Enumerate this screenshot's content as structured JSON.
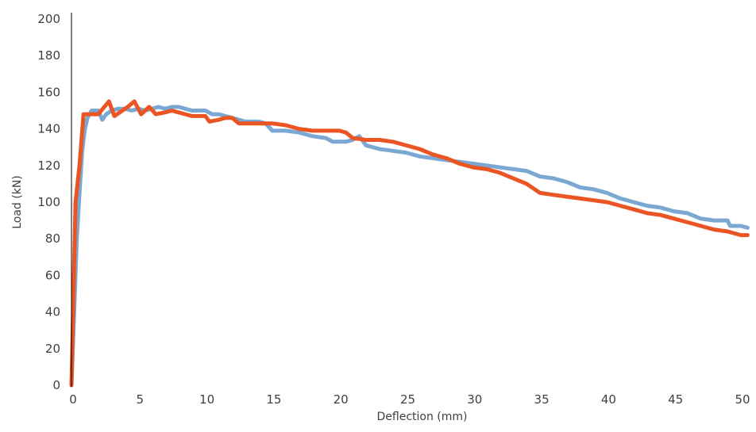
{
  "chart_data": {
    "type": "line",
    "xlabel": "Deflection (mm)",
    "ylabel": "Load (kN)",
    "xlim": [
      0,
      50
    ],
    "ylim": [
      0,
      200
    ],
    "xticks": [
      0,
      5,
      10,
      15,
      20,
      25,
      30,
      35,
      40,
      45,
      50
    ],
    "yticks": [
      0,
      20,
      40,
      60,
      80,
      100,
      120,
      140,
      160,
      180,
      200
    ],
    "grid": false,
    "legend": "none",
    "series": [
      {
        "color": "#7ba7d3",
        "points": [
          [
            0,
            0
          ],
          [
            0.2,
            40
          ],
          [
            0.4,
            80
          ],
          [
            0.6,
            105
          ],
          [
            0.8,
            128
          ],
          [
            1.0,
            140
          ],
          [
            1.2,
            146
          ],
          [
            1.5,
            150
          ],
          [
            2.0,
            150
          ],
          [
            2.3,
            145
          ],
          [
            2.6,
            148
          ],
          [
            3.0,
            150
          ],
          [
            3.5,
            151
          ],
          [
            4.0,
            151
          ],
          [
            4.5,
            150
          ],
          [
            5.0,
            151
          ],
          [
            5.5,
            150
          ],
          [
            6.0,
            151
          ],
          [
            6.5,
            152
          ],
          [
            7.0,
            151
          ],
          [
            7.5,
            152
          ],
          [
            8.0,
            152
          ],
          [
            8.5,
            151
          ],
          [
            9.0,
            150
          ],
          [
            9.5,
            150
          ],
          [
            10.0,
            150
          ],
          [
            10.5,
            148
          ],
          [
            11.0,
            148
          ],
          [
            11.5,
            147
          ],
          [
            12.0,
            146
          ],
          [
            12.5,
            145
          ],
          [
            13.0,
            144
          ],
          [
            13.5,
            144
          ],
          [
            14.0,
            144
          ],
          [
            14.5,
            143
          ],
          [
            15.0,
            139
          ],
          [
            16.0,
            139
          ],
          [
            17.0,
            138
          ],
          [
            17.5,
            137
          ],
          [
            18.0,
            136
          ],
          [
            19.0,
            135
          ],
          [
            19.5,
            133
          ],
          [
            20.0,
            133
          ],
          [
            20.5,
            133
          ],
          [
            21.0,
            134
          ],
          [
            21.5,
            136
          ],
          [
            22.0,
            131
          ],
          [
            23.0,
            129
          ],
          [
            24.0,
            128
          ],
          [
            25.0,
            127
          ],
          [
            26.0,
            125
          ],
          [
            27.0,
            124
          ],
          [
            28.0,
            123
          ],
          [
            29.0,
            122
          ],
          [
            30.0,
            121
          ],
          [
            31.0,
            120
          ],
          [
            32.0,
            119
          ],
          [
            33.0,
            118
          ],
          [
            34.0,
            117
          ],
          [
            35.0,
            114
          ],
          [
            36.0,
            113
          ],
          [
            37.0,
            111
          ],
          [
            38.0,
            108
          ],
          [
            39.0,
            107
          ],
          [
            40.0,
            105
          ],
          [
            41.0,
            102
          ],
          [
            42.0,
            100
          ],
          [
            43.0,
            98
          ],
          [
            44.0,
            97
          ],
          [
            45.0,
            95
          ],
          [
            46.0,
            94
          ],
          [
            47.0,
            91
          ],
          [
            48.0,
            90
          ],
          [
            49.0,
            90
          ],
          [
            49.2,
            87
          ],
          [
            50.0,
            87
          ],
          [
            50.5,
            86
          ]
        ]
      },
      {
        "color": "#ea5523",
        "points": [
          [
            0,
            0
          ],
          [
            0.3,
            100
          ],
          [
            0.6,
            120
          ],
          [
            0.9,
            148
          ],
          [
            1.5,
            148
          ],
          [
            2.0,
            148
          ],
          [
            2.8,
            155
          ],
          [
            3.2,
            147
          ],
          [
            3.8,
            150
          ],
          [
            4.2,
            152
          ],
          [
            4.7,
            155
          ],
          [
            5.2,
            148
          ],
          [
            5.8,
            152
          ],
          [
            6.3,
            148
          ],
          [
            7.0,
            149
          ],
          [
            7.5,
            150
          ],
          [
            8.0,
            149
          ],
          [
            8.5,
            148
          ],
          [
            9.0,
            147
          ],
          [
            9.5,
            147
          ],
          [
            10.0,
            147
          ],
          [
            10.3,
            144
          ],
          [
            11.0,
            145
          ],
          [
            11.5,
            146
          ],
          [
            12.0,
            146
          ],
          [
            12.5,
            143
          ],
          [
            14.0,
            143
          ],
          [
            15.0,
            143
          ],
          [
            16.0,
            142
          ],
          [
            17.0,
            140
          ],
          [
            18.0,
            139
          ],
          [
            19.0,
            139
          ],
          [
            20.0,
            139
          ],
          [
            20.5,
            138
          ],
          [
            21.0,
            135
          ],
          [
            22.0,
            134
          ],
          [
            23.0,
            134
          ],
          [
            24.0,
            133
          ],
          [
            25.0,
            131
          ],
          [
            26.0,
            129
          ],
          [
            27.0,
            126
          ],
          [
            28.0,
            124
          ],
          [
            29.0,
            121
          ],
          [
            30.0,
            119
          ],
          [
            31.0,
            118
          ],
          [
            32.0,
            116
          ],
          [
            33.0,
            113
          ],
          [
            34.0,
            110
          ],
          [
            35.0,
            105
          ],
          [
            36.0,
            104
          ],
          [
            37.0,
            103
          ],
          [
            38.0,
            102
          ],
          [
            39.0,
            101
          ],
          [
            40.0,
            100
          ],
          [
            41.0,
            98
          ],
          [
            42.0,
            96
          ],
          [
            43.0,
            94
          ],
          [
            44.0,
            93
          ],
          [
            45.0,
            91
          ],
          [
            46.0,
            89
          ],
          [
            47.0,
            87
          ],
          [
            48.0,
            85
          ],
          [
            49.0,
            84
          ],
          [
            50.0,
            82
          ],
          [
            50.5,
            82
          ]
        ]
      }
    ]
  }
}
